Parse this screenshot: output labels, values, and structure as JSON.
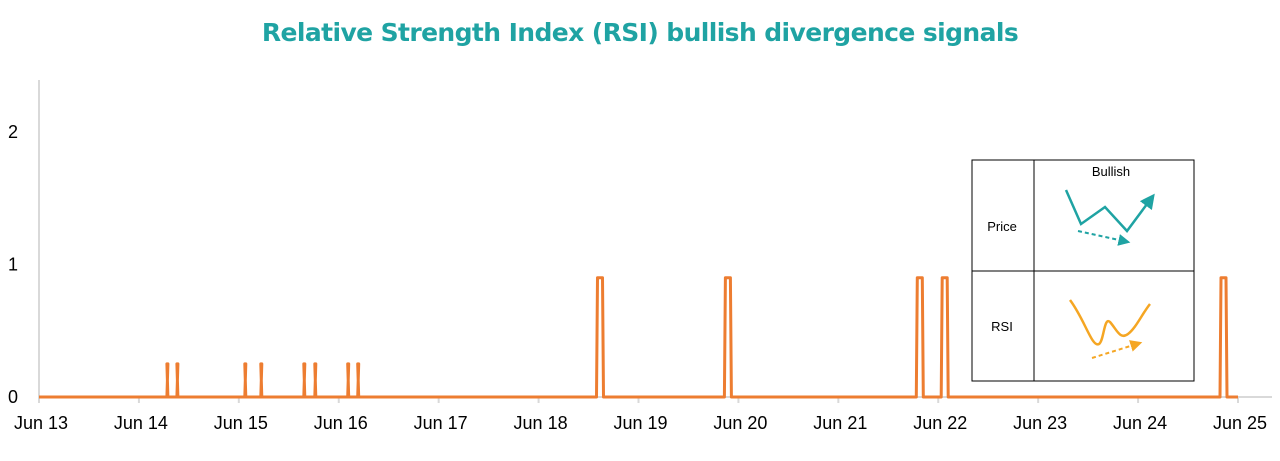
{
  "chart_data": {
    "type": "line",
    "title": "Relative Strength Index (RSI) bullish divergence signals",
    "xlabel": "",
    "ylabel": "",
    "x_tick_labels": [
      "Jun 13",
      "Jun 14",
      "Jun 15",
      "Jun 16",
      "Jun 17",
      "Jun 18",
      "Jun 19",
      "Jun 20",
      "Jun 21",
      "Jun 22",
      "Jun 23",
      "Jun 24",
      "Jun 25"
    ],
    "y_tick_labels": [
      "0",
      "1",
      "2"
    ],
    "ylim": [
      0,
      2.4
    ],
    "series": [
      {
        "color": "#ED7D31",
        "pulses": [
          {
            "start": "Jun 14",
            "end": "Jun 14",
            "value": 0.25
          },
          {
            "start": "Jun 14",
            "end": "Jun 14",
            "value": 0.25
          },
          {
            "start": "Jun 15",
            "end": "Jun 15",
            "value": 0.25
          },
          {
            "start": "Jun 15",
            "end": "Jun 15",
            "value": 0.25
          },
          {
            "start": "Jun 15",
            "end": "Jun 15",
            "value": 0.25
          },
          {
            "start": "Jun 15",
            "end": "Jun 15",
            "value": 0.25
          },
          {
            "start": "Jun 16",
            "end": "Jun 16",
            "value": 0.25
          },
          {
            "start": "Jun 16",
            "end": "Jun 16",
            "value": 0.25
          },
          {
            "start": "Jun 18",
            "end": "Jun 18",
            "value": 0.9
          },
          {
            "start": "Jun 19",
            "end": "Jun 19",
            "value": 0.9
          },
          {
            "start": "Jun 21",
            "end": "Jun 21",
            "value": 0.9
          },
          {
            "start": "Jun 22",
            "end": "Jun 22",
            "value": 0.9
          },
          {
            "start": "Jun 24",
            "end": "Jun 24",
            "value": 0.9
          }
        ]
      }
    ],
    "legend_box": {
      "position": "right",
      "header": "Bullish",
      "rows": [
        "Price",
        "RSI"
      ]
    }
  },
  "colors": {
    "title": "#1FA3A3",
    "signal": "#ED7D31",
    "axis": "#D9D9D9",
    "legend_price": "#1FA3A3",
    "legend_rsi": "#F5A623"
  }
}
